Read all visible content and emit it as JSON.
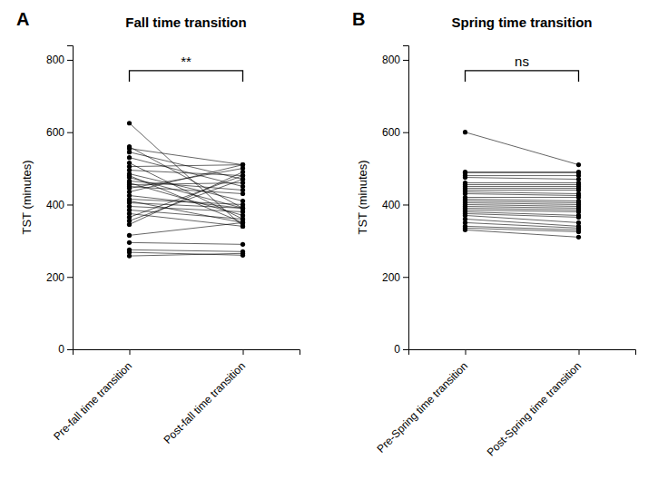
{
  "chart_data": [
    {
      "type": "paired",
      "label": "A",
      "title": "Fall time transition",
      "ylabel": "TST (minutes)",
      "categories": [
        "Pre-fall time transition",
        "Post-fall time transition"
      ],
      "series": [
        {
          "values": [
            625,
            340
          ]
        },
        {
          "values": [
            560,
            390
          ]
        },
        {
          "values": [
            555,
            510
          ]
        },
        {
          "values": [
            545,
            470
          ]
        },
        {
          "values": [
            530,
            450
          ]
        },
        {
          "values": [
            515,
            360
          ]
        },
        {
          "values": [
            505,
            510
          ]
        },
        {
          "values": [
            495,
            480
          ]
        },
        {
          "values": [
            485,
            410
          ]
        },
        {
          "values": [
            480,
            350
          ]
        },
        {
          "values": [
            475,
            390
          ]
        },
        {
          "values": [
            465,
            440
          ]
        },
        {
          "values": [
            460,
            370
          ]
        },
        {
          "values": [
            455,
            460
          ]
        },
        {
          "values": [
            450,
            430
          ]
        },
        {
          "values": [
            445,
            500
          ]
        },
        {
          "values": [
            435,
            510
          ]
        },
        {
          "values": [
            425,
            390
          ]
        },
        {
          "values": [
            415,
            400
          ]
        },
        {
          "values": [
            410,
            350
          ]
        },
        {
          "values": [
            405,
            390
          ]
        },
        {
          "values": [
            395,
            380
          ]
        },
        {
          "values": [
            385,
            360
          ]
        },
        {
          "values": [
            375,
            340
          ]
        },
        {
          "values": [
            365,
            480
          ]
        },
        {
          "values": [
            355,
            470
          ]
        },
        {
          "values": [
            345,
            490
          ]
        },
        {
          "values": [
            315,
            350
          ]
        },
        {
          "values": [
            295,
            290
          ]
        },
        {
          "values": [
            275,
            270
          ]
        },
        {
          "values": [
            268,
            260
          ]
        },
        {
          "values": [
            258,
            265
          ]
        }
      ],
      "ylim": [
        0,
        840
      ],
      "yticks": [
        0,
        200,
        400,
        600,
        800
      ],
      "color": "#000000",
      "annotations": [
        {
          "text": "**",
          "y": 770,
          "y_start": 740
        }
      ]
    },
    {
      "type": "paired",
      "label": "B",
      "title": "Spring time transition",
      "ylabel": "TST (minutes)",
      "categories": [
        "Pre-Spring time transition",
        "Post-Spring time transition"
      ],
      "series": [
        {
          "values": [
            600,
            510
          ]
        },
        {
          "values": [
            490,
            490
          ]
        },
        {
          "values": [
            488,
            488
          ]
        },
        {
          "values": [
            480,
            480
          ]
        },
        {
          "values": [
            475,
            470
          ]
        },
        {
          "values": [
            460,
            460
          ]
        },
        {
          "values": [
            455,
            455
          ]
        },
        {
          "values": [
            450,
            450
          ]
        },
        {
          "values": [
            445,
            445
          ]
        },
        {
          "values": [
            440,
            440
          ]
        },
        {
          "values": [
            435,
            430
          ]
        },
        {
          "values": [
            430,
            425
          ]
        },
        {
          "values": [
            420,
            420
          ]
        },
        {
          "values": [
            415,
            410
          ]
        },
        {
          "values": [
            410,
            405
          ]
        },
        {
          "values": [
            405,
            400
          ]
        },
        {
          "values": [
            400,
            395
          ]
        },
        {
          "values": [
            395,
            390
          ]
        },
        {
          "values": [
            390,
            385
          ]
        },
        {
          "values": [
            385,
            380
          ]
        },
        {
          "values": [
            380,
            370
          ]
        },
        {
          "values": [
            375,
            365
          ]
        },
        {
          "values": [
            370,
            350
          ]
        },
        {
          "values": [
            360,
            340
          ]
        },
        {
          "values": [
            350,
            335
          ]
        },
        {
          "values": [
            340,
            330
          ]
        },
        {
          "values": [
            335,
            325
          ]
        },
        {
          "values": [
            330,
            310
          ]
        }
      ],
      "ylim": [
        0,
        840
      ],
      "yticks": [
        0,
        200,
        400,
        600,
        800
      ],
      "color": "#000000",
      "annotations": [
        {
          "text": "ns",
          "y": 770,
          "y_start": 740
        }
      ]
    }
  ]
}
